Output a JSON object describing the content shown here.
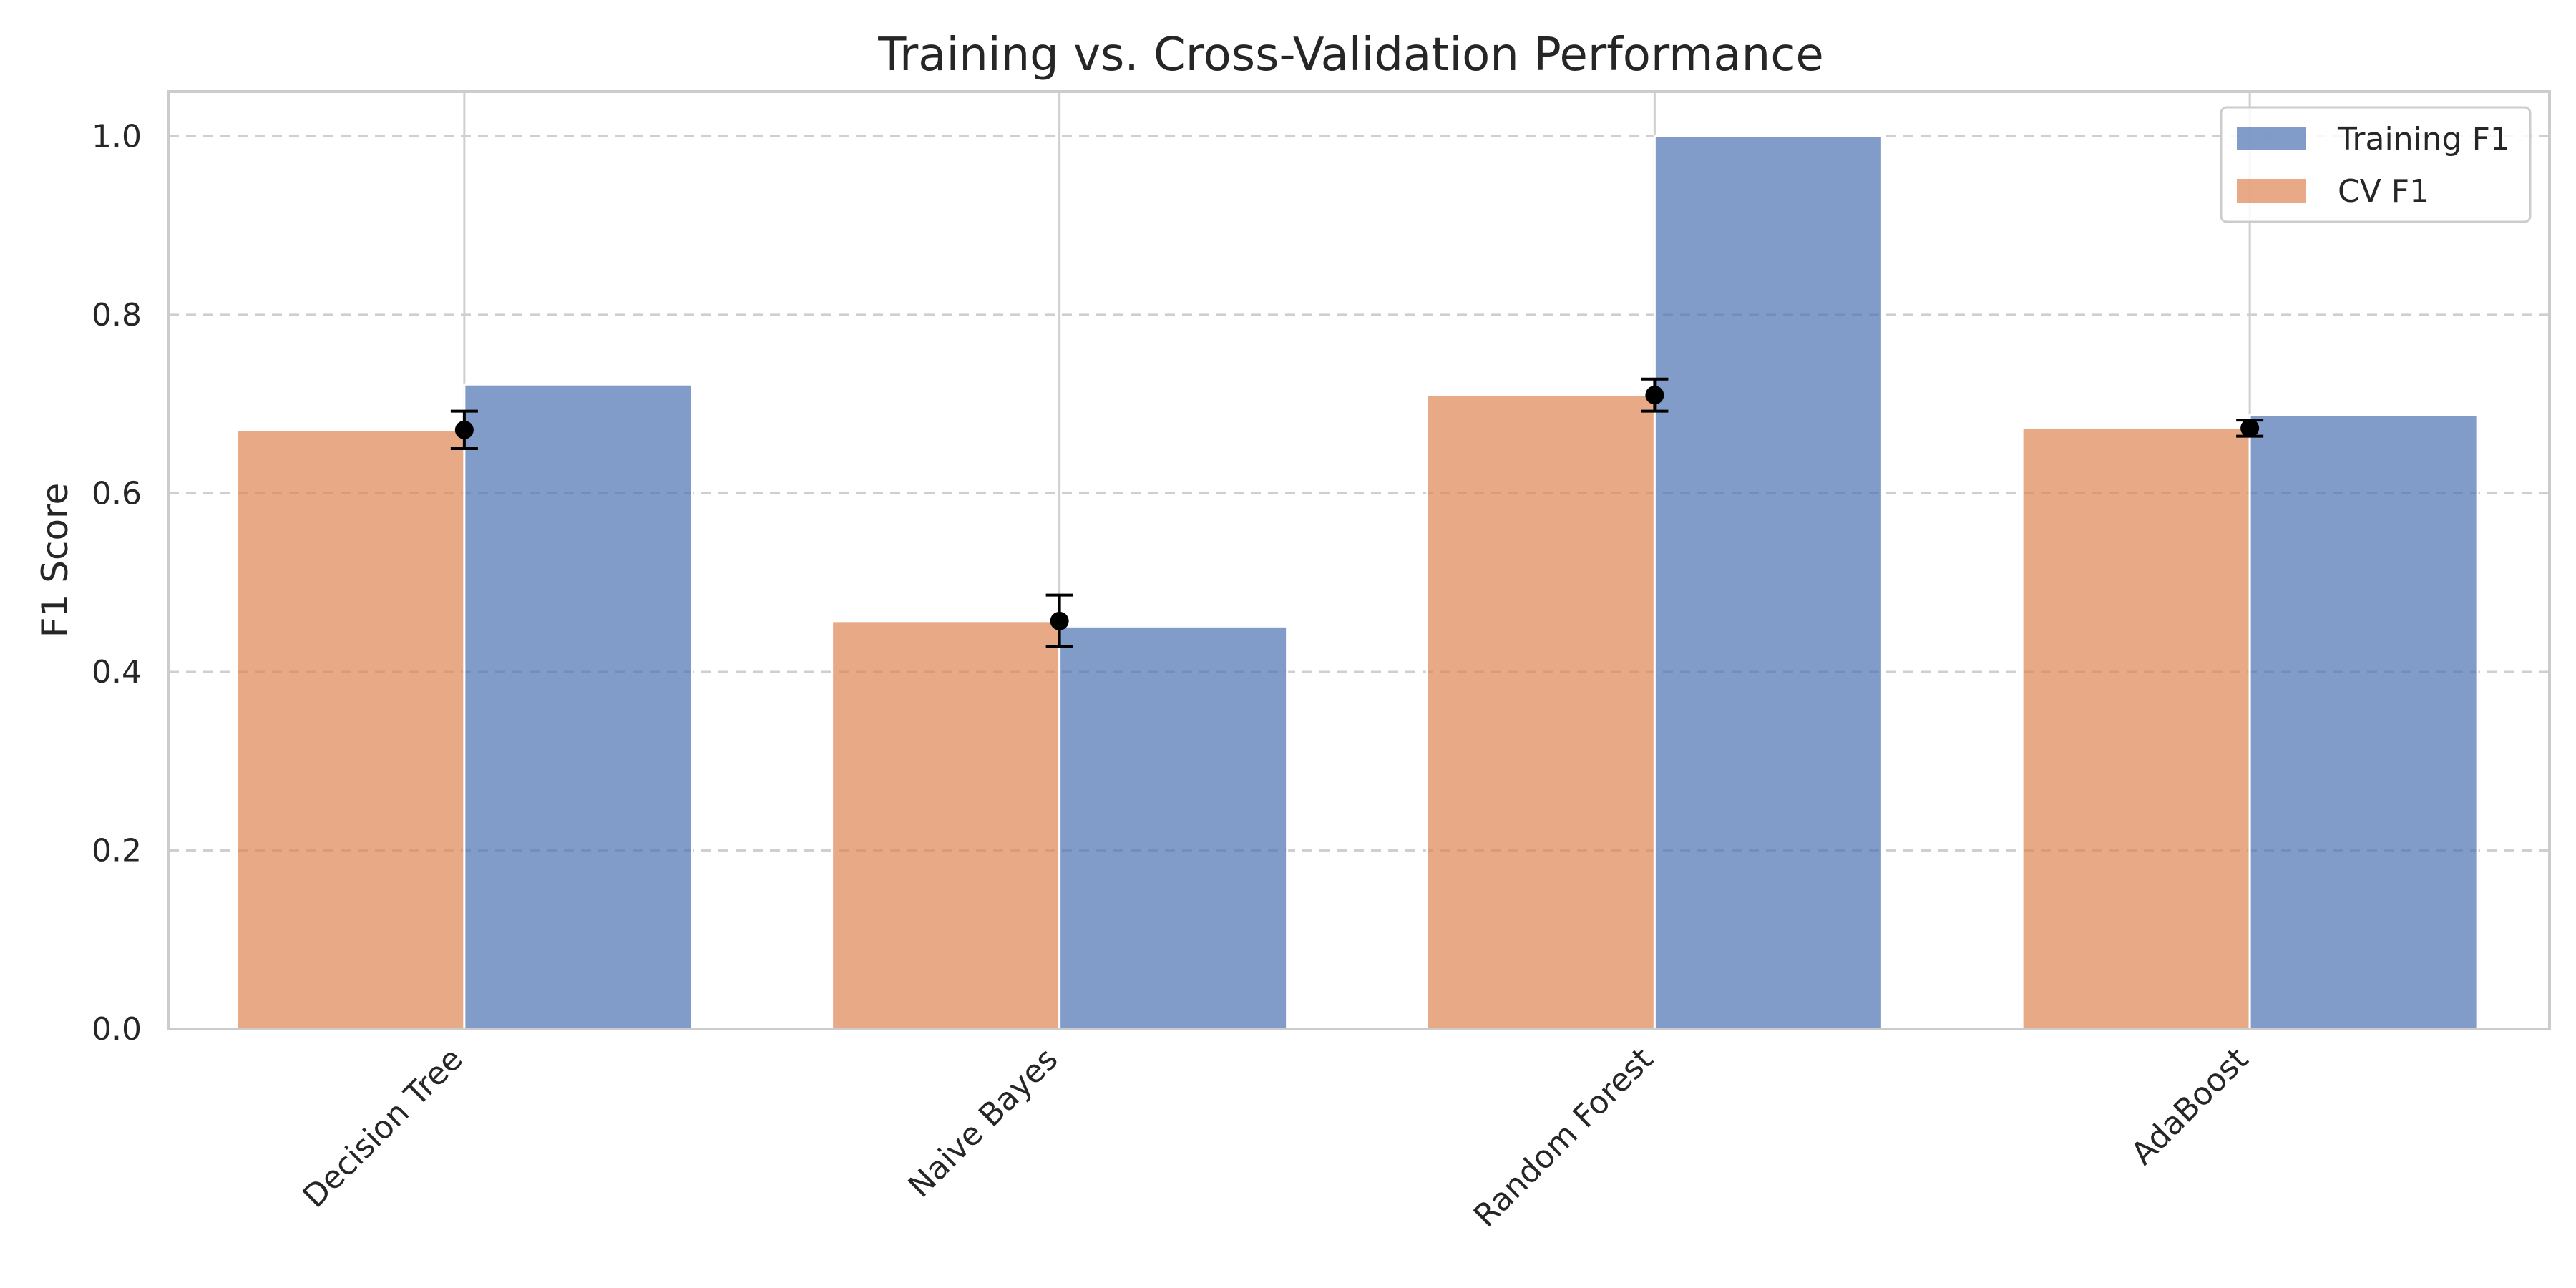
{
  "chart_data": {
    "type": "bar",
    "title": "Training vs. Cross-Validation Performance",
    "xlabel": "",
    "ylabel": "F1 Score",
    "categories": [
      "Decision Tree",
      "Naive Bayes",
      "Random Forest",
      "AdaBoost"
    ],
    "series": [
      {
        "name": "Training F1",
        "values": [
          0.722,
          0.451,
          1.0,
          0.688
        ],
        "color": "#4c72b0"
      },
      {
        "name": "CV F1",
        "values": [
          0.671,
          0.457,
          0.71,
          0.673
        ],
        "color": "#dd8452"
      }
    ],
    "cv_error": [
      0.021,
      0.029,
      0.018,
      0.009
    ],
    "ylim": [
      0,
      1.05
    ],
    "yticks": [
      "0.0",
      "0.2",
      "0.4",
      "0.6",
      "0.8",
      "1.0"
    ],
    "grid": "y dashed",
    "legend_position": "top-right"
  }
}
